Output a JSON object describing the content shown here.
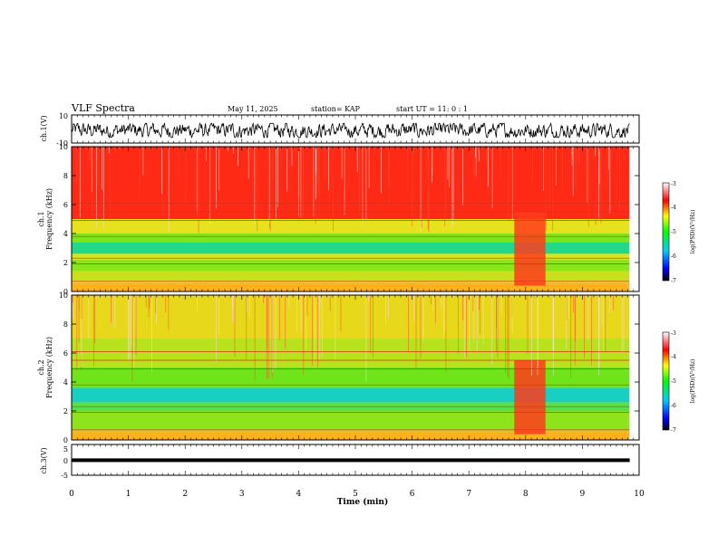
{
  "header": {
    "title": "VLF Spectra",
    "date": "May 11, 2025",
    "station": "station= KAP",
    "start": "start  UT =   11: 0  : 1"
  },
  "chart_data": [
    {
      "type": "line",
      "name": "ch1-waveform",
      "ylabel": "ch.1(V)",
      "ylim": [
        -10,
        10
      ],
      "yticks": [
        10,
        -10
      ],
      "x_range_min": [
        0,
        9.83
      ],
      "amplitude_description_v": [
        -6,
        4
      ]
    },
    {
      "type": "heatmap",
      "name": "ch1-spectrogram",
      "ylabel_line1": "ch.1",
      "ylabel_line2": "Frequency  (kHz)",
      "ylim": [
        0,
        10
      ],
      "yticks": [
        "0",
        "2",
        "4",
        "6",
        "8",
        "10"
      ],
      "x_range_min": [
        0,
        9.83
      ],
      "bands_khz": [
        {
          "from": 5.0,
          "to": 10.0,
          "color": "#ff2a16"
        },
        {
          "from": 4.0,
          "to": 5.0,
          "color": "#e7e21e"
        },
        {
          "from": 3.4,
          "to": 4.0,
          "color": "#7ee51a"
        },
        {
          "from": 2.6,
          "to": 3.4,
          "color": "#22d98a"
        },
        {
          "from": 2.2,
          "to": 2.6,
          "color": "#d8e51a"
        },
        {
          "from": 1.4,
          "to": 2.2,
          "color": "#8ae51a"
        },
        {
          "from": 0.6,
          "to": 1.4,
          "color": "#c9e11c"
        },
        {
          "from": 0.0,
          "to": 0.6,
          "color": "#ffb020"
        }
      ],
      "event_window_min": [
        7.8,
        8.35
      ],
      "event_color": "#ff3b1c"
    },
    {
      "type": "heatmap",
      "name": "ch2-spectrogram",
      "ylabel_line1": "ch.2",
      "ylabel_line2": "Frequency  (kHz)",
      "ylim": [
        0,
        10
      ],
      "yticks": [
        "0",
        "2",
        "4",
        "6",
        "8",
        "10"
      ],
      "x_range_min": [
        0,
        9.83
      ],
      "bands_khz": [
        {
          "from": 7.0,
          "to": 10.0,
          "color": "#e7d81c"
        },
        {
          "from": 5.0,
          "to": 7.0,
          "color": "#b8e21c"
        },
        {
          "from": 3.6,
          "to": 5.0,
          "color": "#6fe41a"
        },
        {
          "from": 2.6,
          "to": 3.6,
          "color": "#18cfc2"
        },
        {
          "from": 2.0,
          "to": 2.6,
          "color": "#56e04a"
        },
        {
          "from": 0.6,
          "to": 2.0,
          "color": "#8ee31a"
        },
        {
          "from": 0.0,
          "to": 0.6,
          "color": "#ffb020"
        }
      ],
      "event_window_min": [
        7.8,
        8.35
      ],
      "event_color": "#ff3b1c"
    },
    {
      "type": "line",
      "name": "ch3-waveform",
      "ylabel": "ch.3(V)",
      "ylim": [
        -5,
        5
      ],
      "yticks": [
        "5",
        "0",
        "-5"
      ],
      "x_range_min": [
        0,
        9.83
      ],
      "amplitude_description_v": [
        -0.6,
        0.4
      ]
    }
  ],
  "xaxis": {
    "label": "Time  (min)",
    "range": [
      0,
      10
    ],
    "ticks": [
      "0",
      "1",
      "2",
      "3",
      "4",
      "5",
      "6",
      "7",
      "8",
      "9",
      "10"
    ]
  },
  "colorbars": [
    {
      "name": "ch1-colorbar",
      "label": "log(PSD)(V²/Hz)",
      "range": [
        -7,
        -3
      ],
      "ticks": [
        "-3",
        "-4",
        "-5",
        "-6",
        "-7"
      ],
      "colors": [
        "#000000",
        "#0000ff",
        "#00c8ff",
        "#00ff00",
        "#ffff00",
        "#ff0000",
        "#ffffff"
      ]
    },
    {
      "name": "ch2-colorbar",
      "label": "log(PSD)(V²/Hz)",
      "range": [
        -7,
        -3
      ],
      "ticks": [
        "-3",
        "-4",
        "-5",
        "-6",
        "-7"
      ],
      "colors": [
        "#000000",
        "#0000ff",
        "#00c8ff",
        "#00ff00",
        "#ffff00",
        "#ff0000",
        "#ffffff"
      ]
    }
  ]
}
